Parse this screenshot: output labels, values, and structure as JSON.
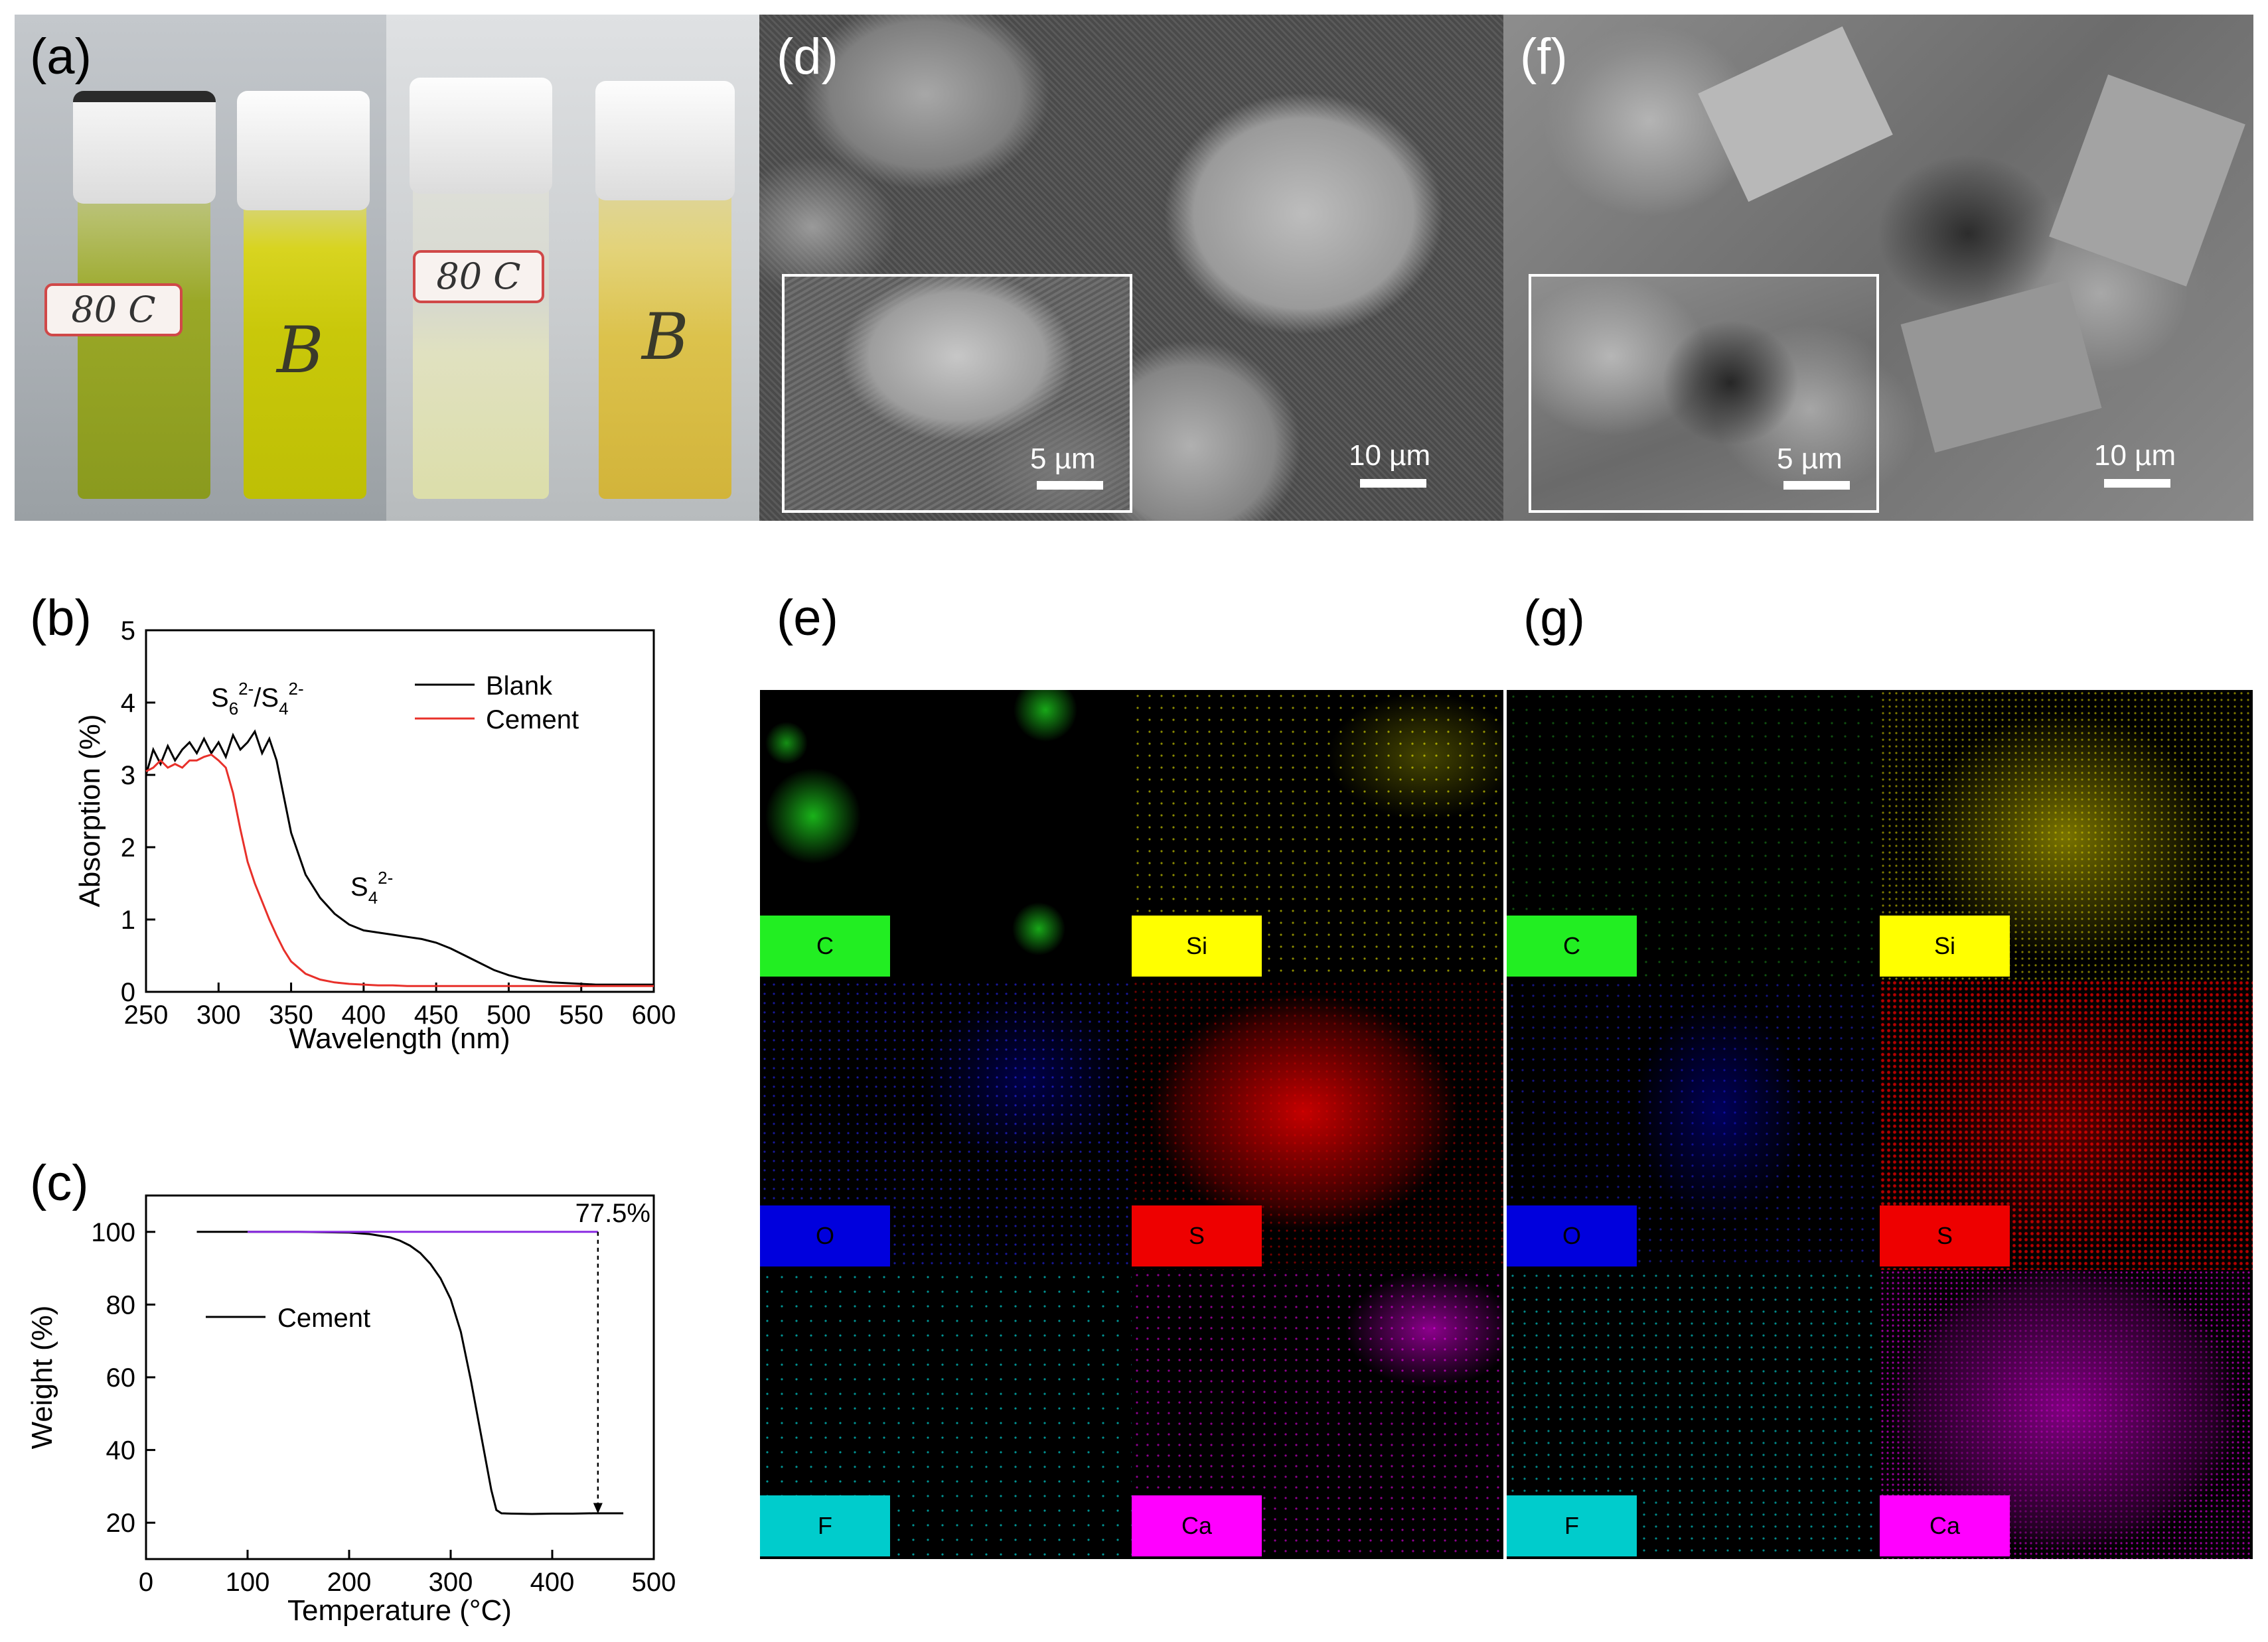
{
  "panels": {
    "a": {
      "label": "(a)",
      "tags": [
        "80 C",
        "80 C"
      ],
      "letters": [
        "B",
        "B"
      ]
    },
    "b": {
      "label": "(b)"
    },
    "c": {
      "label": "(c)"
    },
    "d": {
      "label": "(d)",
      "scale_main": "10 µm",
      "scale_inset": "5 µm"
    },
    "e": {
      "label": "(e)",
      "elements": [
        "C",
        "Si",
        "O",
        "S",
        "F",
        "Ca"
      ]
    },
    "f": {
      "label": "(f)",
      "scale_main": "10 µm",
      "scale_inset": "5 µm"
    },
    "g": {
      "label": "(g)",
      "elements": [
        "C",
        "Si",
        "O",
        "S",
        "F",
        "Ca"
      ]
    }
  },
  "colors": {
    "C": "#22ee22",
    "Si": "#ffff00",
    "O": "#0000dd",
    "S": "#ee0000",
    "F": "#00cccc",
    "Ca": "#ff00ff",
    "blank": "#000000",
    "cement": "#e8302a",
    "baseline": "#8a2be2"
  },
  "chart_data": [
    {
      "type": "line",
      "xlabel": "Wavelength (nm)",
      "ylabel": "Absorption (%)",
      "xlim": [
        250,
        600
      ],
      "ylim": [
        0,
        5
      ],
      "xticks": [
        250,
        300,
        350,
        400,
        450,
        500,
        550,
        600
      ],
      "yticks": [
        0,
        1,
        2,
        3,
        4,
        5
      ],
      "legend_position": "top-right",
      "annotations": [
        {
          "text": "S",
          "sub1": "6",
          "sup1": "2-",
          "text2": "/S",
          "sub2": "4",
          "sup2": "2-",
          "x": 290,
          "y": 3.95
        },
        {
          "text": "S",
          "sub1": "4",
          "sup1": "2-",
          "x": 380,
          "y": 1.35
        }
      ],
      "series": [
        {
          "name": "Blank",
          "color": "#000000",
          "x": [
            250,
            255,
            260,
            265,
            270,
            275,
            280,
            285,
            290,
            295,
            300,
            305,
            310,
            315,
            320,
            325,
            330,
            335,
            340,
            345,
            350,
            360,
            370,
            380,
            390,
            400,
            410,
            420,
            430,
            440,
            450,
            460,
            470,
            480,
            490,
            500,
            510,
            520,
            530,
            540,
            550,
            560,
            570,
            580,
            590,
            600
          ],
          "y": [
            3.0,
            3.35,
            3.15,
            3.4,
            3.2,
            3.35,
            3.45,
            3.3,
            3.5,
            3.3,
            3.45,
            3.25,
            3.55,
            3.35,
            3.45,
            3.6,
            3.3,
            3.5,
            3.2,
            2.7,
            2.2,
            1.62,
            1.3,
            1.08,
            0.93,
            0.85,
            0.82,
            0.79,
            0.76,
            0.73,
            0.68,
            0.6,
            0.5,
            0.4,
            0.3,
            0.23,
            0.18,
            0.15,
            0.13,
            0.12,
            0.11,
            0.1,
            0.1,
            0.1,
            0.1,
            0.1
          ]
        },
        {
          "name": "Cement",
          "color": "#e8302a",
          "x": [
            250,
            255,
            260,
            265,
            270,
            275,
            280,
            285,
            290,
            295,
            300,
            305,
            310,
            315,
            320,
            325,
            330,
            335,
            340,
            345,
            350,
            360,
            370,
            380,
            390,
            400,
            410,
            420,
            430,
            440,
            450,
            460,
            470,
            480,
            490,
            500,
            510,
            520,
            530,
            540,
            550,
            560,
            570,
            580,
            590,
            600
          ],
          "y": [
            3.05,
            3.1,
            3.2,
            3.1,
            3.15,
            3.1,
            3.2,
            3.2,
            3.25,
            3.28,
            3.2,
            3.1,
            2.75,
            2.25,
            1.8,
            1.5,
            1.25,
            1.0,
            0.78,
            0.58,
            0.42,
            0.25,
            0.17,
            0.13,
            0.11,
            0.1,
            0.09,
            0.09,
            0.08,
            0.08,
            0.08,
            0.08,
            0.08,
            0.08,
            0.08,
            0.08,
            0.08,
            0.08,
            0.08,
            0.08,
            0.08,
            0.08,
            0.08,
            0.08,
            0.08,
            0.08
          ]
        }
      ]
    },
    {
      "type": "line",
      "xlabel": "Temperature (°C)",
      "ylabel": "Weight (%)",
      "xlim": [
        0,
        500
      ],
      "ylim": [
        10,
        110
      ],
      "xticks": [
        0,
        100,
        200,
        300,
        400,
        500
      ],
      "yticks": [
        20,
        40,
        60,
        80,
        100
      ],
      "legend_position": "center-left",
      "annotations": [
        {
          "text": "77.5%",
          "x": 445,
          "from_y": 100,
          "to_y": 22.5
        }
      ],
      "series": [
        {
          "name": "Cement",
          "color": "#000000",
          "x": [
            50,
            100,
            150,
            200,
            220,
            240,
            250,
            260,
            270,
            280,
            290,
            300,
            310,
            320,
            330,
            340,
            345,
            350,
            360,
            380,
            400,
            420,
            440,
            470
          ],
          "y": [
            100,
            100,
            100,
            99.8,
            99.4,
            98.5,
            97.6,
            96.2,
            94.2,
            91.2,
            87.2,
            81.5,
            72.5,
            59,
            44,
            29,
            23.5,
            22.6,
            22.5,
            22.4,
            22.5,
            22.5,
            22.6,
            22.6
          ]
        },
        {
          "name": "",
          "color": "#8a2be2",
          "x": [
            100,
            445
          ],
          "y": [
            100,
            100
          ]
        }
      ]
    }
  ]
}
